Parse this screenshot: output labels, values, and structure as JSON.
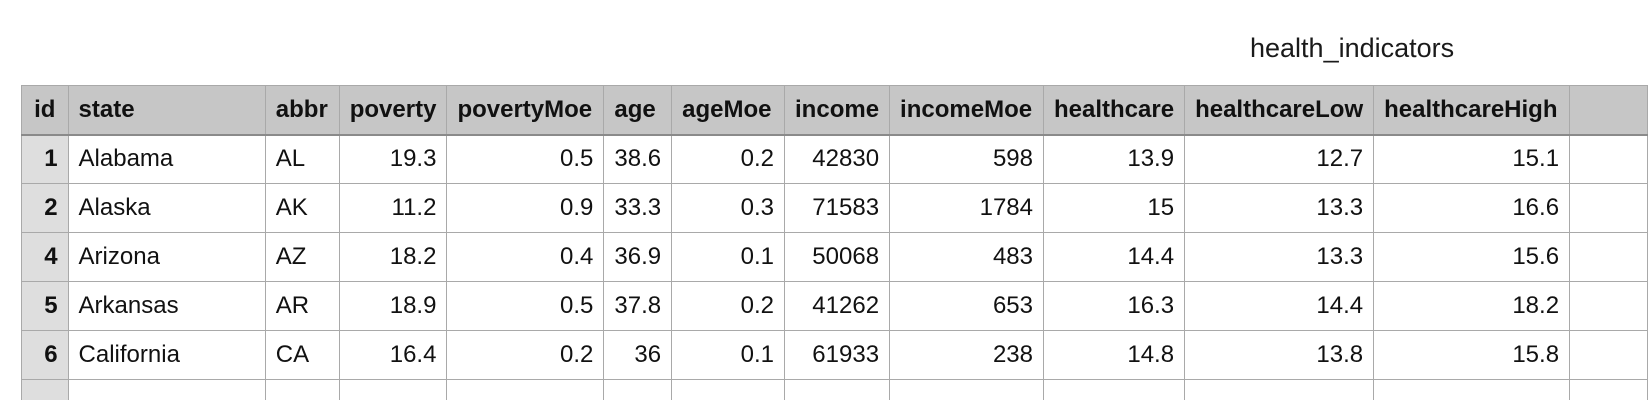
{
  "sheet": {
    "title": "health_indicators"
  },
  "columns": [
    "id",
    "state",
    "abbr",
    "poverty",
    "povertyMoe",
    "age",
    "ageMoe",
    "income",
    "incomeMoe",
    "healthcare",
    "healthcareLow",
    "healthcareHigh"
  ],
  "rows": [
    [
      "1",
      "Alabama",
      "AL",
      "19.3",
      "0.5",
      "38.6",
      "0.2",
      "42830",
      "598",
      "13.9",
      "12.7",
      "15.1"
    ],
    [
      "2",
      "Alaska",
      "AK",
      "11.2",
      "0.9",
      "33.3",
      "0.3",
      "71583",
      "1784",
      "15",
      "13.3",
      "16.6"
    ],
    [
      "4",
      "Arizona",
      "AZ",
      "18.2",
      "0.4",
      "36.9",
      "0.1",
      "50068",
      "483",
      "14.4",
      "13.3",
      "15.6"
    ],
    [
      "5",
      "Arkansas",
      "AR",
      "18.9",
      "0.5",
      "37.8",
      "0.2",
      "41262",
      "653",
      "16.3",
      "14.4",
      "18.2"
    ],
    [
      "6",
      "California",
      "CA",
      "16.4",
      "0.2",
      "36",
      "0.1",
      "61933",
      "238",
      "14.8",
      "13.8",
      "15.8"
    ]
  ]
}
